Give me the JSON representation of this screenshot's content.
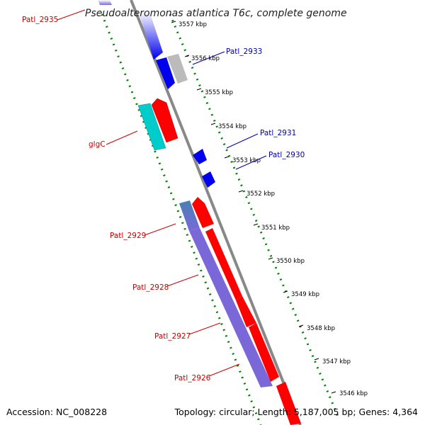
{
  "title": "Pseudoalteromonas atlantica T6c, complete genome",
  "ticks": [
    "3557 kbp",
    "3556 kbp",
    "3555 kbp",
    "3554 kbp",
    "3553 kbp",
    "3552 kbp",
    "3551 kbp",
    "3550 kbp",
    "3549 kbp",
    "3548 kbp",
    "3547 kbp",
    "3546 kbp"
  ],
  "gene_labels": [
    {
      "text": "Patl_2935",
      "color": "#cc0000"
    },
    {
      "text": "Patl_2933",
      "color": "#0000aa"
    },
    {
      "text": "glgC",
      "color": "#cc0000"
    },
    {
      "text": "Patl_2931",
      "color": "#0000aa"
    },
    {
      "text": "Patl_2930",
      "color": "#0000aa"
    },
    {
      "text": "Patl_2929",
      "color": "#cc0000"
    },
    {
      "text": "Patl_2928",
      "color": "#cc0000"
    },
    {
      "text": "Patl_2927",
      "color": "#cc0000"
    },
    {
      "text": "Patl_2926",
      "color": "#cc0000"
    }
  ],
  "footer": {
    "accession": "Accession: NC_008228",
    "topology": "Topology: circular; Length: 5,187,005 bp; Genes: 4,364"
  },
  "colors": {
    "forward_gene": "#ff0000",
    "reverse_gene": "#0000ee",
    "rna_gene": "#00cccc",
    "pseudo_gene": "#bbbbbb",
    "operon": "#7b68d8",
    "backbone": "#888888",
    "tick_mark": "#008000"
  }
}
